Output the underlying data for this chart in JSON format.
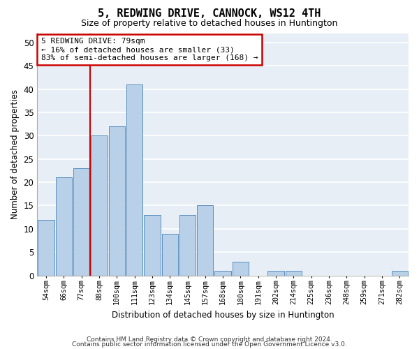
{
  "title": "5, REDWING DRIVE, CANNOCK, WS12 4TH",
  "subtitle": "Size of property relative to detached houses in Huntington",
  "xlabel": "Distribution of detached houses by size in Huntington",
  "ylabel": "Number of detached properties",
  "bar_color": "#b8d0e8",
  "bar_edge_color": "#5a8fc0",
  "background_color": "#e8eef5",
  "grid_color": "#ffffff",
  "categories": [
    "54sqm",
    "66sqm",
    "77sqm",
    "88sqm",
    "100sqm",
    "111sqm",
    "123sqm",
    "134sqm",
    "145sqm",
    "157sqm",
    "168sqm",
    "180sqm",
    "191sqm",
    "202sqm",
    "214sqm",
    "225sqm",
    "236sqm",
    "248sqm",
    "259sqm",
    "271sqm",
    "282sqm"
  ],
  "values": [
    12,
    21,
    23,
    30,
    32,
    41,
    13,
    9,
    13,
    15,
    1,
    3,
    0,
    1,
    1,
    0,
    0,
    0,
    0,
    0,
    1
  ],
  "annotation_text": "5 REDWING DRIVE: 79sqm\n← 16% of detached houses are smaller (33)\n83% of semi-detached houses are larger (168) →",
  "annotation_box_color": "#ffffff",
  "annotation_box_edge_color": "#cc0000",
  "prop_line_color": "#cc0000",
  "ylim": [
    0,
    52
  ],
  "yticks": [
    0,
    5,
    10,
    15,
    20,
    25,
    30,
    35,
    40,
    45,
    50
  ],
  "footer_line1": "Contains HM Land Registry data © Crown copyright and database right 2024.",
  "footer_line2": "Contains public sector information licensed under the Open Government Licence v3.0.",
  "title_fontsize": 11,
  "subtitle_fontsize": 9
}
